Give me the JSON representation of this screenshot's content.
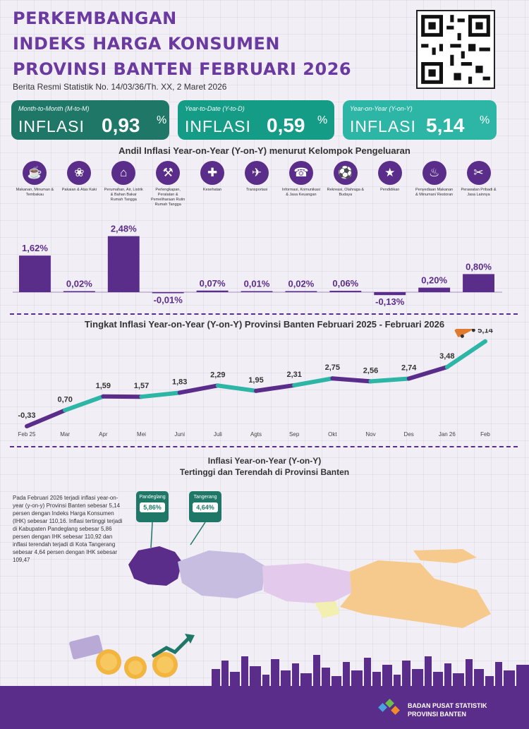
{
  "header": {
    "title_lines": [
      "PERKEMBANGAN",
      "INDEKS HARGA KONSUMEN",
      "PROVINSI BANTEN FEBRUARI 2026"
    ],
    "subtitle": "Berita Resmi Statistik No. 14/03/36/Th. XX, 2 Maret 2026"
  },
  "summary": [
    {
      "label": "Month-to-Month (M-to-M)",
      "word": "INFLASI",
      "value": "0,93",
      "unit": "%",
      "color": "#1f7867"
    },
    {
      "label": "Year-to-Date (Y-to-D)",
      "word": "INFLASI",
      "value": "0,59",
      "unit": "%",
      "color": "#159c87"
    },
    {
      "label": "Year-on-Year (Y-on-Y)",
      "word": "INFLASI",
      "value": "5,14",
      "unit": "%",
      "color": "#2db6a6"
    }
  ],
  "andil_title": "Andil Inflasi Year-on-Year (Y-on-Y) menurut Kelompok Pengeluaran",
  "line_title": "Tingkat Inflasi Year-on-Year (Y-on-Y) Provinsi Banten Februari 2025 - Februari 2026",
  "map_title_1": "Inflasi Year-on-Year (Y-on-Y)",
  "map_title_2": "Tertinggi dan Terendah di Provinsi Banten",
  "map_blurb": "Pada Februari 2026 terjadi inflasi year-on-year (y-on-y) Provinsi Banten sebesar 5,14 persen dengan Indeks Harga Konsumen (IHK) sebesar 110,16. Inflasi tertinggi terjadi di Kabupaten Pandeglang sebesar 5,86 persen dengan IHK sebesar 110,92 dan inflasi terendah terjadi di Kota Tangerang sebesar 4,64 persen dengan IHK sebesar 109,47",
  "callouts": [
    {
      "name": "Pandeglang",
      "value": "5,86%"
    },
    {
      "name": "Tangerang",
      "value": "4,64%"
    }
  ],
  "footer": {
    "org_line1": "BADAN PUSAT STATISTIK",
    "org_line2": "PROVINSI BANTEN"
  },
  "colors": {
    "purple": "#5b2d8a",
    "teal": "#2db6a6",
    "dark_teal": "#1f7867"
  },
  "chart_data": [
    {
      "type": "bar",
      "title": "Andil Inflasi Year-on-Year (Y-on-Y) menurut Kelompok Pengeluaran",
      "categories": [
        "Makanan, Minuman & Tembakau",
        "Pakaian & Alas Kaki",
        "Perumahan, Air, Listrik & Bahan Bakar Rumah Tangga",
        "Perlengkapan, Peralatan & Pemeliharaan Rutin Rumah Tangga",
        "Kesehatan",
        "Transportasi",
        "Informasi, Komunikasi & Jasa Keuangan",
        "Rekreasi, Olahraga & Budaya",
        "Pendidikan",
        "Penyediaan Makanan & Minuman/ Restoran",
        "Perawatan Pribadi & Jasa Lainnya"
      ],
      "icons": [
        "food-icon",
        "clothing-icon",
        "house-icon",
        "tools-icon",
        "health-icon",
        "plane-icon",
        "phone-icon",
        "sports-icon",
        "graduation-icon",
        "restaurant-icon",
        "personal-care-icon"
      ],
      "values": [
        1.62,
        0.02,
        2.48,
        -0.01,
        0.07,
        0.01,
        0.02,
        0.06,
        -0.13,
        0.2,
        0.8
      ],
      "labels": [
        "1,62%",
        "0,02%",
        "2,48%",
        "-0,01%",
        "0,07%",
        "0,01%",
        "0,02%",
        "0,06%",
        "-0,13%",
        "0,20%",
        "0,80%"
      ]
    },
    {
      "type": "line",
      "title": "Tingkat Inflasi Year-on-Year (Y-on-Y) Provinsi Banten Februari 2025 - Februari 2026",
      "x": [
        "Feb 25",
        "Mar",
        "Apr",
        "Mei",
        "Juni",
        "Juli",
        "Agts",
        "Sep",
        "Okt",
        "Nov",
        "Des",
        "Jan 26",
        "Feb"
      ],
      "values": [
        -0.33,
        0.7,
        1.59,
        1.57,
        1.83,
        2.29,
        1.95,
        2.31,
        2.75,
        2.56,
        2.74,
        3.48,
        5.14
      ],
      "labels": [
        "-0,33",
        "0,70",
        "1,59",
        "1,57",
        "1,83",
        "2,29",
        "1,95",
        "2,31",
        "2,75",
        "2,56",
        "2,74",
        "3,48",
        "5,14"
      ]
    }
  ]
}
